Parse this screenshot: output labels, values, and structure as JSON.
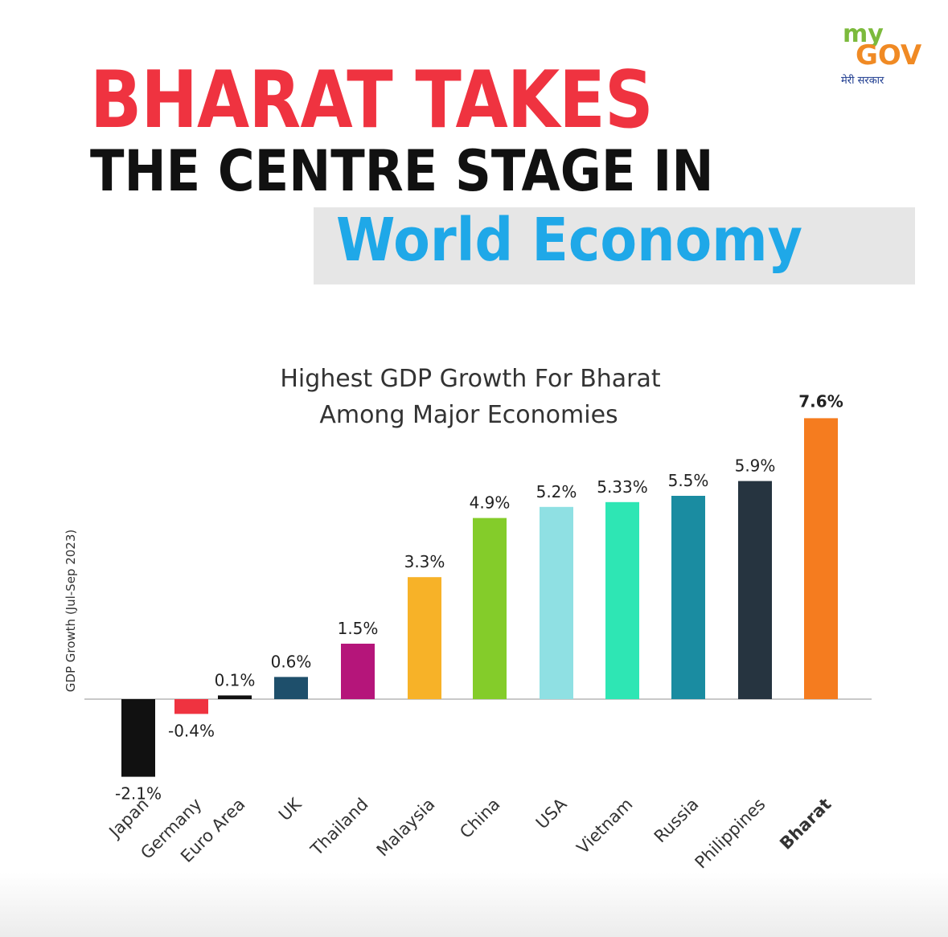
{
  "logo": {
    "my": "my",
    "gov": "GOV",
    "tagline": "मेरी सरकार"
  },
  "headline": {
    "line1": "BHARAT TAKES",
    "line2": "THE CENTRE STAGE IN",
    "line3": "World Economy"
  },
  "colors": {
    "line1": "#ef3340",
    "line2": "#111111",
    "line3": "#1fa8e8",
    "highlight": "#f57c1f"
  },
  "chart_data": {
    "type": "bar",
    "title": [
      "Highest GDP Growth For Bharat",
      "Among Major Economies"
    ],
    "ylabel": "GDP Growth (Jul-Sep 2023)",
    "ylim": [
      -2.1,
      7.6
    ],
    "grid": false,
    "categories": [
      "Japan",
      "Germany",
      "Euro Area",
      "UK",
      "Thailand",
      "Malaysia",
      "China",
      "USA",
      "Vietnam",
      "Russia",
      "Philippines",
      "Bharat"
    ],
    "values": [
      -2.1,
      -0.4,
      0.1,
      0.6,
      1.5,
      3.3,
      4.9,
      5.2,
      5.33,
      5.5,
      5.9,
      7.6
    ],
    "labels": [
      "-2.1%",
      "-0.4%",
      "0.1%",
      "0.6%",
      "1.5%",
      "3.3%",
      "4.9%",
      "5.2%",
      "5.33%",
      "5.5%",
      "5.9%",
      "7.6%"
    ],
    "colors": [
      "#111111",
      "#ef3340",
      "#111111",
      "#1e4f6b",
      "#b5157a",
      "#f7b228",
      "#84cc2a",
      "#8fe0e3",
      "#2ee6b4",
      "#1a8ca1",
      "#263440",
      "#f57c1f"
    ],
    "highlight": "Bharat"
  }
}
